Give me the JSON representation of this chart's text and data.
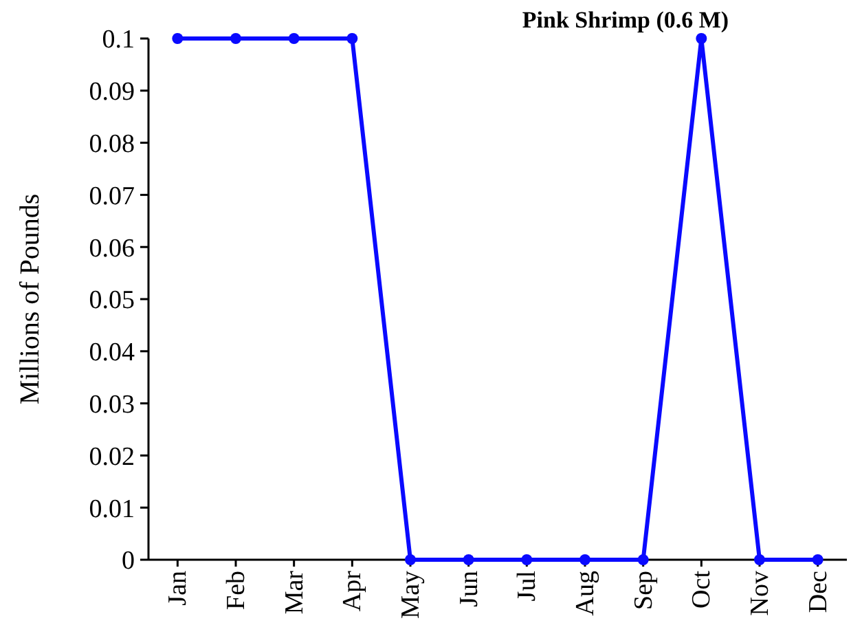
{
  "chart_data": {
    "type": "line",
    "title": "Pink Shrimp (0.6 M)",
    "ylabel": "Millions of Pounds",
    "categories": [
      "Jan",
      "Feb",
      "Mar",
      "Apr",
      "May",
      "Jun",
      "Jul",
      "Aug",
      "Sep",
      "Oct",
      "Nov",
      "Dec"
    ],
    "series": [
      {
        "color": "#0a0aff",
        "values": [
          0.1,
          0.1,
          0.1,
          0.1,
          0,
          0,
          0,
          0,
          0,
          0.1,
          0,
          0
        ]
      }
    ],
    "ylim": [
      0,
      0.1
    ],
    "yticks": [
      0,
      0.01,
      0.02,
      0.03,
      0.04,
      0.05,
      0.06,
      0.07,
      0.08,
      0.09,
      0.1
    ],
    "grid": false,
    "marker": "circle",
    "line_style": "solid"
  }
}
